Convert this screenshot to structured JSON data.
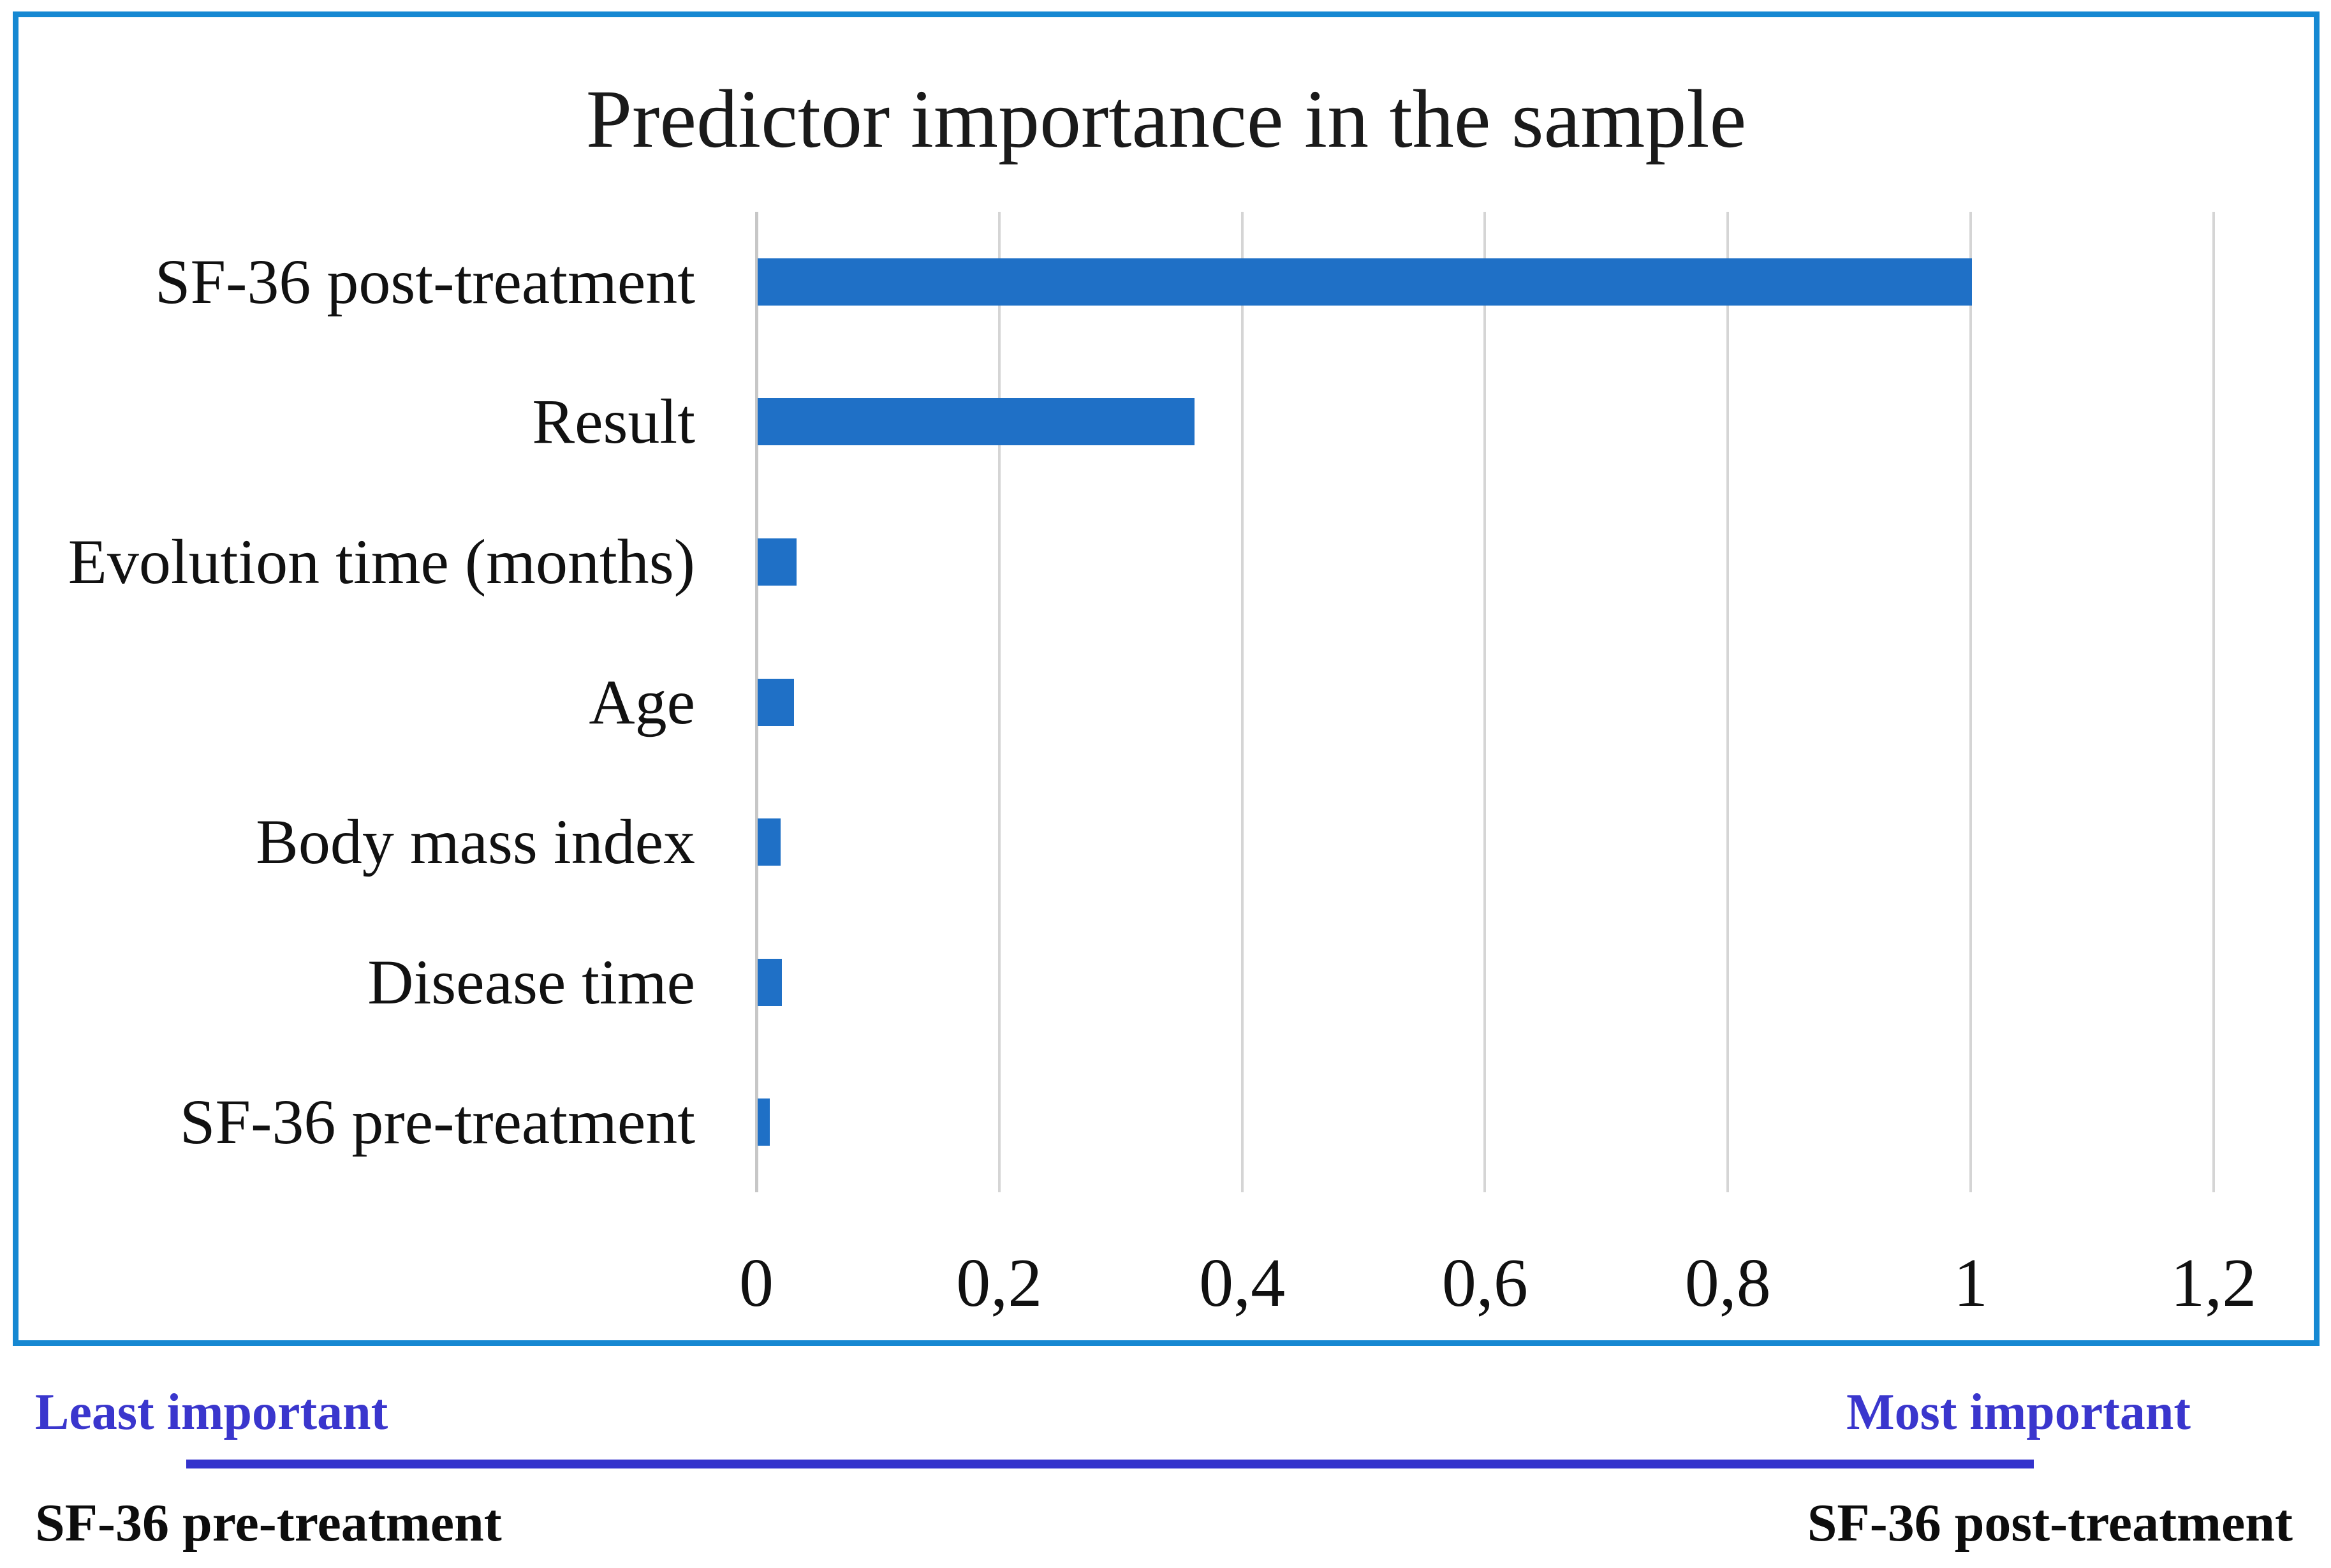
{
  "chart_data": {
    "type": "bar",
    "orientation": "horizontal",
    "title": "Predictor importance in the sample",
    "categories": [
      "SF-36 post-treatment",
      "Result",
      "Evolution time (months)",
      "Age",
      "Body mass index",
      "Disease time",
      "SF-36 pre-treatment"
    ],
    "values": [
      1,
      0.36,
      0.032,
      0.03,
      0.019,
      0.02,
      0.01
    ],
    "xlabel": "",
    "ylabel": "",
    "xlim": [
      0,
      1.2
    ],
    "x_ticks": [
      {
        "value": 0,
        "label": "0"
      },
      {
        "value": 0.2,
        "label": "0,2"
      },
      {
        "value": 0.4,
        "label": "0,4"
      },
      {
        "value": 0.6,
        "label": "0,6"
      },
      {
        "value": 0.8,
        "label": "0,8"
      },
      {
        "value": 1,
        "label": "1"
      },
      {
        "value": 1.2,
        "label": "1,2"
      }
    ],
    "grid": true,
    "legend": null,
    "decimal_separator": ",",
    "bar_color": "#1f70c6",
    "gridline_color": "#d5d5d5",
    "frame_border_color": "#1688d2"
  },
  "footer": {
    "least_label": "Least important",
    "most_label": "Most important",
    "left_predictor": "SF-36 pre-treatment",
    "right_predictor": "SF-36 post-treatment",
    "scale_text_color": "#3a36cd",
    "scale_line_color": "#3433cc"
  }
}
